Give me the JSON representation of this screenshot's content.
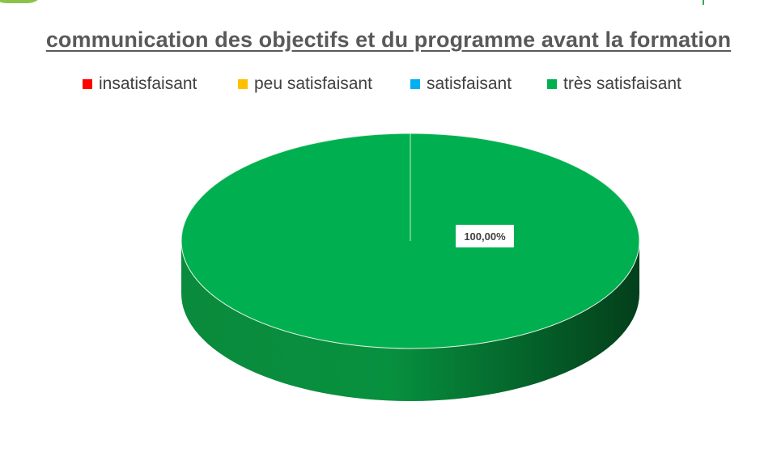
{
  "chart_data": {
    "type": "pie",
    "title": "communication des objectifs et du programme avant la formation",
    "legend_position": "top",
    "series": [
      {
        "name": "insatisfaisant",
        "value": 0,
        "color": "#ff0000"
      },
      {
        "name": "peu satisfaisant",
        "value": 0,
        "color": "#ffc000"
      },
      {
        "name": "satisfaisant",
        "value": 0,
        "color": "#00b0f0"
      },
      {
        "name": "très satisfaisant",
        "value": 100,
        "color": "#00b050"
      }
    ],
    "data_labels": [
      "100,00%"
    ]
  }
}
